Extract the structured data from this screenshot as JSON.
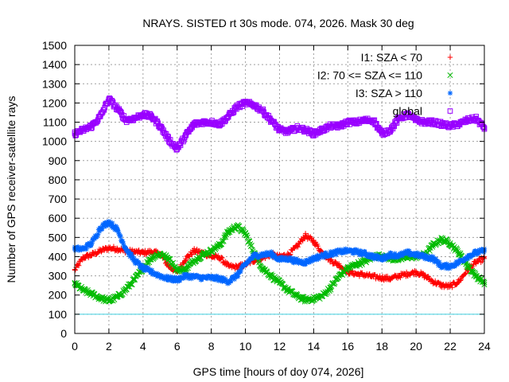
{
  "chart_data": {
    "type": "scatter",
    "title": "NRAYS. SISTED rt 30s mode. 074, 2026. Mask 30 deg",
    "xlabel": "GPS time [hours of doy 074, 2026]",
    "ylabel": "Number of GPS receiver-satellite rays",
    "xlim": [
      0,
      24
    ],
    "ylim": [
      0,
      1500
    ],
    "xticks": [
      0,
      2,
      4,
      6,
      8,
      10,
      12,
      14,
      16,
      18,
      20,
      22,
      24
    ],
    "yticks": [
      0,
      100,
      200,
      300,
      400,
      500,
      600,
      700,
      800,
      900,
      1000,
      1100,
      1200,
      1300,
      1400,
      1500
    ],
    "grid": true,
    "legend_position": "top-right",
    "reference_line": {
      "y": 100,
      "color": "#40d0e0"
    },
    "series": [
      {
        "name": "I1: SZA < 70",
        "marker": "+",
        "color": "#ff0000",
        "x": [
          0,
          0.5,
          1,
          1.5,
          2,
          2.5,
          3,
          3.5,
          4,
          4.5,
          5,
          5.5,
          6,
          6.5,
          7,
          7.5,
          8,
          8.5,
          9,
          9.5,
          10,
          10.5,
          11,
          11.5,
          12,
          12.5,
          13,
          13.5,
          14,
          14.5,
          15,
          15.5,
          16,
          16.5,
          17,
          17.5,
          18,
          18.5,
          19,
          19.5,
          20,
          20.5,
          21,
          21.5,
          22,
          22.5,
          23,
          23.5,
          24
        ],
        "y": [
          330,
          395,
          410,
          430,
          445,
          440,
          430,
          425,
          420,
          425,
          415,
          350,
          320,
          390,
          430,
          420,
          400,
          395,
          350,
          345,
          360,
          380,
          395,
          410,
          400,
          410,
          450,
          510,
          480,
          420,
          380,
          355,
          320,
          310,
          305,
          295,
          290,
          285,
          300,
          310,
          320,
          300,
          270,
          250,
          245,
          270,
          330,
          370,
          390
        ]
      },
      {
        "name": "I2: 70 <= SZA <= 110",
        "marker": "x",
        "color": "#00bb00",
        "x": [
          0,
          0.5,
          1,
          1.5,
          2,
          2.5,
          3,
          3.5,
          4,
          4.5,
          5,
          5.5,
          6,
          6.5,
          7,
          7.5,
          8,
          8.5,
          9,
          9.5,
          10,
          10.5,
          11,
          11.5,
          12,
          12.5,
          13,
          13.5,
          14,
          14.5,
          15,
          15.5,
          16,
          16.5,
          17,
          17.5,
          18,
          18.5,
          19,
          19.5,
          20,
          20.5,
          21,
          21.5,
          22,
          22.5,
          23,
          23.5,
          24
        ],
        "y": [
          260,
          225,
          205,
          185,
          170,
          190,
          230,
          280,
          340,
          395,
          415,
          390,
          330,
          335,
          380,
          410,
          430,
          460,
          530,
          560,
          520,
          420,
          340,
          300,
          265,
          225,
          195,
          175,
          180,
          195,
          240,
          300,
          340,
          360,
          375,
          400,
          405,
          390,
          385,
          400,
          400,
          410,
          460,
          490,
          470,
          420,
          355,
          300,
          265
        ]
      },
      {
        "name": "I3: SZA > 110",
        "marker": "*",
        "color": "#0066ff",
        "x": [
          0,
          0.5,
          1,
          1.5,
          2,
          2.5,
          3,
          3.5,
          4,
          4.5,
          5,
          5.5,
          6,
          6.5,
          7,
          7.5,
          8,
          8.5,
          9,
          9.5,
          10,
          10.5,
          11,
          11.5,
          12,
          12.5,
          13,
          13.5,
          14,
          14.5,
          15,
          15.5,
          16,
          16.5,
          17,
          17.5,
          18,
          18.5,
          19,
          19.5,
          20,
          20.5,
          21,
          21.5,
          22,
          22.5,
          23,
          23.5,
          24
        ],
        "y": [
          440,
          440,
          470,
          550,
          580,
          540,
          440,
          380,
          340,
          320,
          300,
          285,
          280,
          300,
          295,
          290,
          290,
          285,
          270,
          300,
          360,
          405,
          410,
          415,
          385,
          390,
          375,
          370,
          390,
          405,
          415,
          425,
          430,
          425,
          415,
          400,
          390,
          410,
          405,
          420,
          410,
          400,
          390,
          350,
          350,
          370,
          400,
          420,
          430
        ]
      },
      {
        "name": "global",
        "marker": "square",
        "color": "#9900ff",
        "x": [
          0,
          0.5,
          1,
          1.5,
          2,
          2.5,
          3,
          3.5,
          4,
          4.5,
          5,
          5.5,
          6,
          6.5,
          7,
          7.5,
          8,
          8.5,
          9,
          9.5,
          10,
          10.5,
          11,
          11.5,
          12,
          12.5,
          13,
          13.5,
          14,
          14.5,
          15,
          15.5,
          16,
          16.5,
          17,
          17.5,
          18,
          18.5,
          19,
          19.5,
          20,
          20.5,
          21,
          21.5,
          22,
          22.5,
          23,
          23.5,
          24
        ],
        "y": [
          1040,
          1060,
          1080,
          1130,
          1220,
          1170,
          1110,
          1120,
          1140,
          1130,
          1080,
          1010,
          960,
          1030,
          1090,
          1100,
          1100,
          1090,
          1130,
          1180,
          1200,
          1190,
          1160,
          1110,
          1060,
          1050,
          1070,
          1060,
          1040,
          1060,
          1080,
          1080,
          1100,
          1100,
          1110,
          1110,
          1040,
          1060,
          1120,
          1140,
          1110,
          1100,
          1100,
          1090,
          1080,
          1090,
          1110,
          1120,
          1070
        ]
      }
    ]
  }
}
